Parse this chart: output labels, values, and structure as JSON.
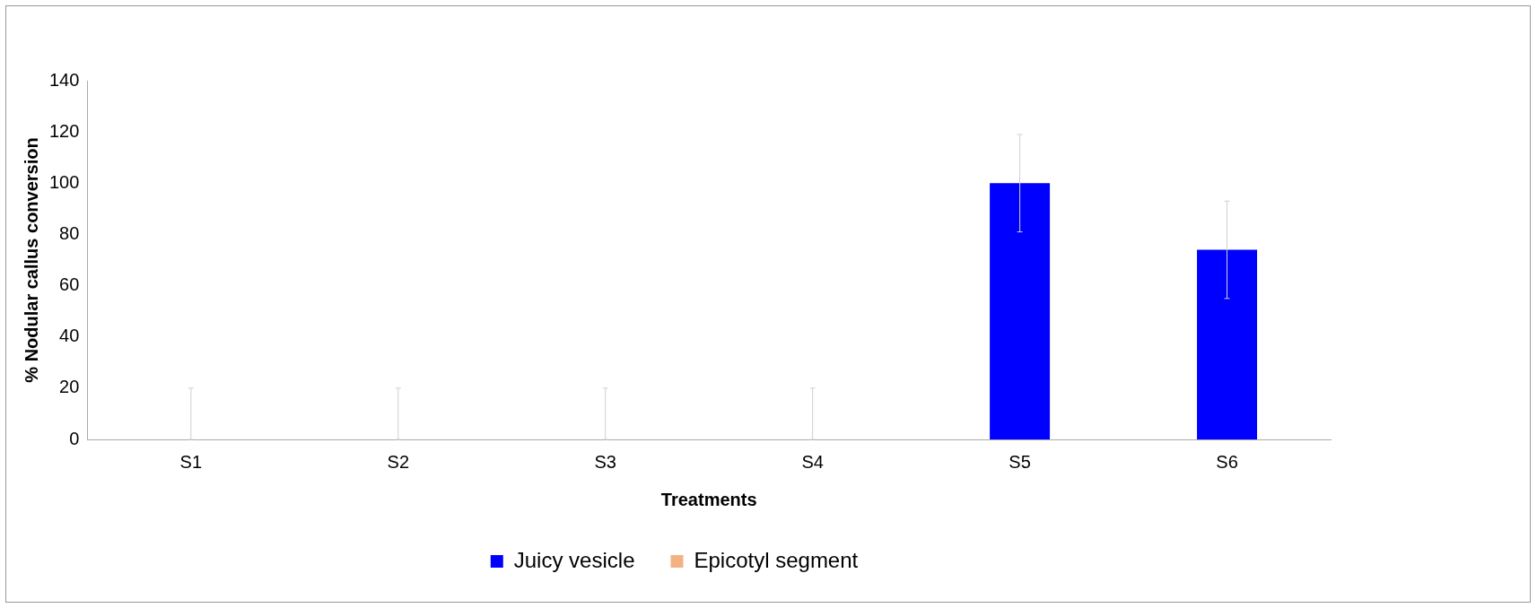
{
  "chart_data": {
    "type": "bar",
    "xlabel": "Treatments",
    "ylabel": "% Nodular callus conversion",
    "categories": [
      "S1",
      "S2",
      "S3",
      "S4",
      "S5",
      "S6"
    ],
    "series": [
      {
        "name": "Juicy vesicle",
        "color": "#0000ff",
        "values": [
          0,
          0,
          0,
          0,
          100,
          74
        ],
        "errors": [
          [
            0,
            20
          ],
          [
            0,
            20
          ],
          [
            0,
            20
          ],
          [
            0,
            20
          ],
          [
            81,
            119
          ],
          [
            55,
            93
          ]
        ]
      },
      {
        "name": "Epicotyl segment",
        "color": "#f4b183",
        "values": [
          0,
          0,
          0,
          0,
          0,
          0
        ]
      }
    ],
    "ylim": [
      0,
      140
    ],
    "yticks": [
      0,
      20,
      40,
      60,
      80,
      100,
      120,
      140
    ],
    "grid": false,
    "legend": "bottom"
  }
}
